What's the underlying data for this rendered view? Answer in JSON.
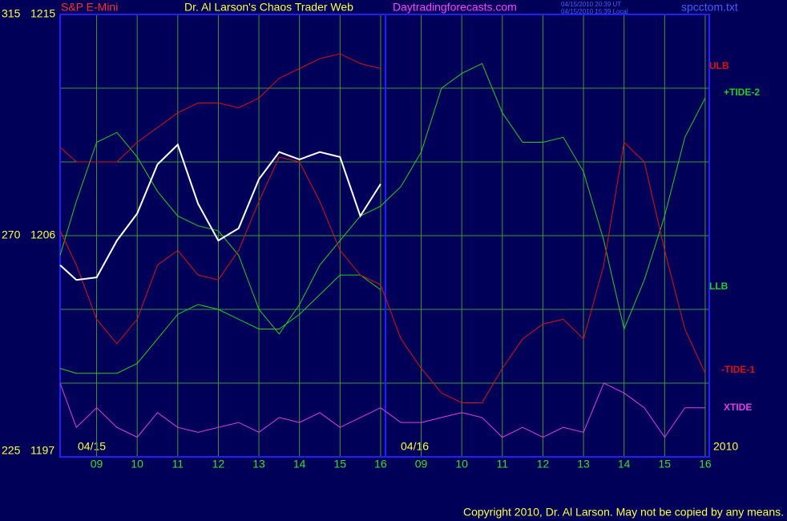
{
  "chart_data": {
    "type": "line",
    "header": {
      "symbol": "S&P E-Mini",
      "title": "Dr. Al Larson's Chaos Trader Web",
      "site": "Daytradingforecasts.com",
      "times": [
        "04/15/2010 20:39 UT",
        "04/15/2010 15:39 Local"
      ],
      "file": "spcctom.txt"
    },
    "date_labels": [
      "04/15",
      "04/16"
    ],
    "year": "2010",
    "copyright": "Copyright 2010, Dr. Al Larson. May not be copied by any means.",
    "x": [
      0.1,
      0.5,
      1,
      1.5,
      2,
      2.5,
      3,
      3.5,
      4,
      4.5,
      5,
      5.5,
      6,
      6.5,
      7,
      7.5,
      8,
      8.5,
      9,
      9.5,
      10,
      10.5,
      11,
      11.5,
      12,
      12.5,
      13,
      13.5,
      14,
      14.5,
      15,
      15.5,
      16
    ],
    "xlim": [
      0.1,
      16.1
    ],
    "xticks": [
      {
        "value": 1,
        "label": "09"
      },
      {
        "value": 2,
        "label": "10"
      },
      {
        "value": 3,
        "label": "11"
      },
      {
        "value": 4,
        "label": "12"
      },
      {
        "value": 5,
        "label": "13"
      },
      {
        "value": 6,
        "label": "14"
      },
      {
        "value": 7,
        "label": "15"
      },
      {
        "value": 8,
        "label": "16"
      },
      {
        "value": 9,
        "label": "09"
      },
      {
        "value": 10,
        "label": "10"
      },
      {
        "value": 11,
        "label": "11"
      },
      {
        "value": 12,
        "label": "12"
      },
      {
        "value": 13,
        "label": "13"
      },
      {
        "value": 14,
        "label": "14"
      },
      {
        "value": 15,
        "label": "15"
      },
      {
        "value": 16,
        "label": "16"
      }
    ],
    "ylim": [
      225,
      315
    ],
    "yticks": [
      225,
      {
        "value": 240,
        "label": null
      },
      {
        "value": 255,
        "label": null
      },
      270,
      {
        "value": 285,
        "label": null
      },
      {
        "value": 300,
        "label": null
      },
      315
    ],
    "y2lim": [
      1197,
      1215
    ],
    "y2ticks": [
      1197,
      1206,
      1215
    ],
    "grid": true,
    "series": [
      {
        "name": "ULB",
        "color": "#e01010",
        "values": [
          288,
          285,
          285,
          285,
          289,
          292,
          295,
          297,
          297,
          296,
          298,
          302,
          304,
          306,
          307,
          305,
          304,
          null,
          null,
          null,
          null,
          null,
          null,
          null,
          null,
          null,
          null,
          null,
          null,
          null,
          null,
          null,
          null
        ]
      },
      {
        "name": "+TIDE-2",
        "color": "#20d020",
        "values": [
          266,
          277,
          289,
          291,
          286,
          279,
          274,
          272,
          271,
          266,
          255,
          250,
          256,
          264,
          269,
          274,
          276,
          280,
          287,
          300,
          303,
          305,
          295,
          289,
          289,
          290,
          283,
          269,
          251,
          261,
          274,
          290,
          298
        ]
      },
      {
        "name": "LLB",
        "color": "#20d020",
        "values": [
          243,
          242,
          242,
          242,
          244,
          249,
          254,
          256,
          255,
          253,
          251,
          251,
          254,
          258,
          262,
          262,
          259,
          null,
          null,
          null,
          null,
          null,
          null,
          null,
          null,
          null,
          null,
          null,
          null,
          null,
          null,
          null,
          null
        ]
      },
      {
        "name": "-TIDE-1",
        "color": "#e01010",
        "values": [
          271,
          264,
          253,
          248,
          253,
          264,
          267,
          262,
          261,
          267,
          277,
          286,
          285,
          277,
          267,
          262,
          260,
          249,
          243,
          238,
          236,
          236,
          243,
          249,
          252,
          253,
          249,
          264,
          289,
          285,
          267,
          251,
          242
        ]
      },
      {
        "name": "XTIDE",
        "color": "#e040e0",
        "values": [
          240,
          231,
          235,
          231,
          229,
          234,
          231,
          230,
          231,
          232,
          230,
          233,
          232,
          234,
          231,
          233,
          235,
          232,
          232,
          233,
          234,
          233,
          229,
          231,
          229,
          231,
          230,
          240,
          238,
          235,
          229,
          235,
          235
        ]
      },
      {
        "color": "#ffffff",
        "axis": "y2",
        "values": [
          1204.8,
          1204.2,
          1204.3,
          1205.8,
          1206.9,
          1208.9,
          1209.7,
          1207.3,
          1205.8,
          1206.3,
          1208.3,
          1209.4,
          1209.1,
          1209.4,
          1209.2,
          1206.8,
          1208.1,
          null,
          null,
          null,
          null,
          null,
          null,
          null,
          null,
          null,
          null,
          null,
          null,
          null,
          null,
          null,
          null
        ]
      }
    ]
  }
}
